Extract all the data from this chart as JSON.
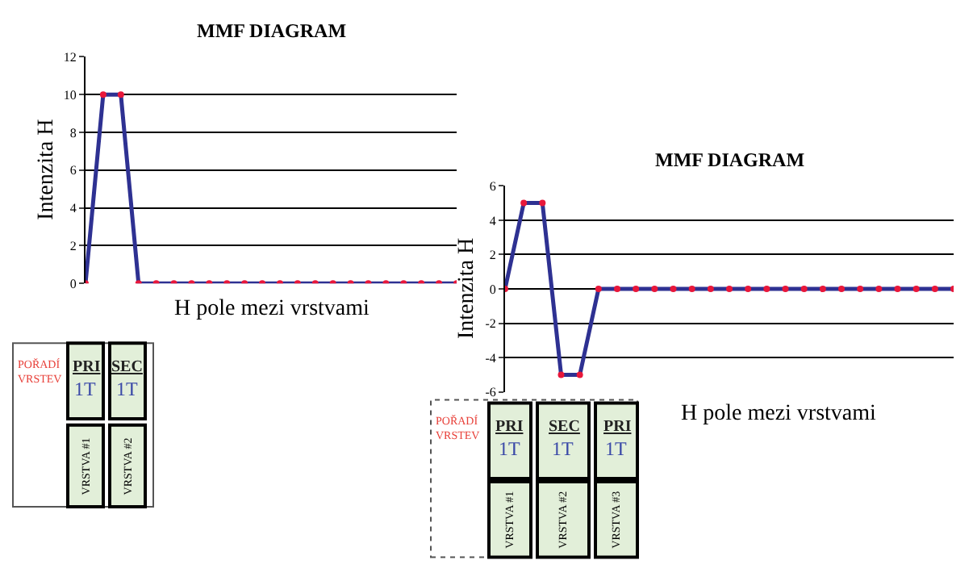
{
  "chart_data": [
    {
      "type": "line",
      "title": "MMF DIAGRAM",
      "xlabel": "H pole mezi vrstvami",
      "ylabel": "Intenzita H",
      "categories": [
        null,
        null,
        null,
        null,
        null,
        null,
        null,
        null,
        null,
        null,
        null,
        null,
        null,
        null,
        null,
        null,
        null,
        null,
        null,
        null,
        null,
        null
      ],
      "series": [
        {
          "color": "#2e3192",
          "values": [
            0,
            10,
            10,
            0,
            0,
            0,
            0,
            0,
            0,
            0,
            0,
            0,
            0,
            0,
            0,
            0,
            0,
            0,
            0,
            0,
            0,
            0
          ]
        }
      ],
      "ylim": [
        0,
        12
      ],
      "yticks": [
        0,
        2,
        4,
        6,
        8,
        10,
        12
      ],
      "grid": "y",
      "marker": "circle",
      "line_style": "solid"
    },
    {
      "type": "line",
      "title": "MMF DIAGRAM",
      "xlabel": "H pole mezi vrstvami",
      "ylabel": "Intenzita H",
      "categories": [
        null,
        null,
        null,
        null,
        null,
        null,
        null,
        null,
        null,
        null,
        null,
        null,
        null,
        null,
        null,
        null,
        null,
        null,
        null,
        null,
        null,
        null,
        null,
        null,
        null
      ],
      "series": [
        {
          "color": "#2e3192",
          "values": [
            0,
            5,
            5,
            -5,
            -5,
            0,
            0,
            0,
            0,
            0,
            0,
            0,
            0,
            0,
            0,
            0,
            0,
            0,
            0,
            0,
            0,
            0,
            0,
            0,
            0
          ]
        }
      ],
      "ylim": [
        -6,
        6
      ],
      "yticks": [
        -6,
        -4,
        -2,
        0,
        2,
        4,
        6
      ],
      "grid": "y",
      "marker": "circle",
      "line_style": "solid"
    },
    {
      "type": "other",
      "title": "POŘADÍ VRSTEV",
      "categories": [
        "VRSTVA #1",
        "VRSTVA #2"
      ],
      "annotations": [
        "PRI",
        "1T",
        "SEC",
        "1T"
      ]
    },
    {
      "type": "other",
      "title": "POŘADÍ VRSTEV",
      "categories": [
        "VRSTVA #1",
        "VRSTVA #2",
        "VRSTVA #3"
      ],
      "annotations": [
        "PRI",
        "1T",
        "SEC",
        "1T",
        "PRI",
        "1T"
      ]
    }
  ]
}
